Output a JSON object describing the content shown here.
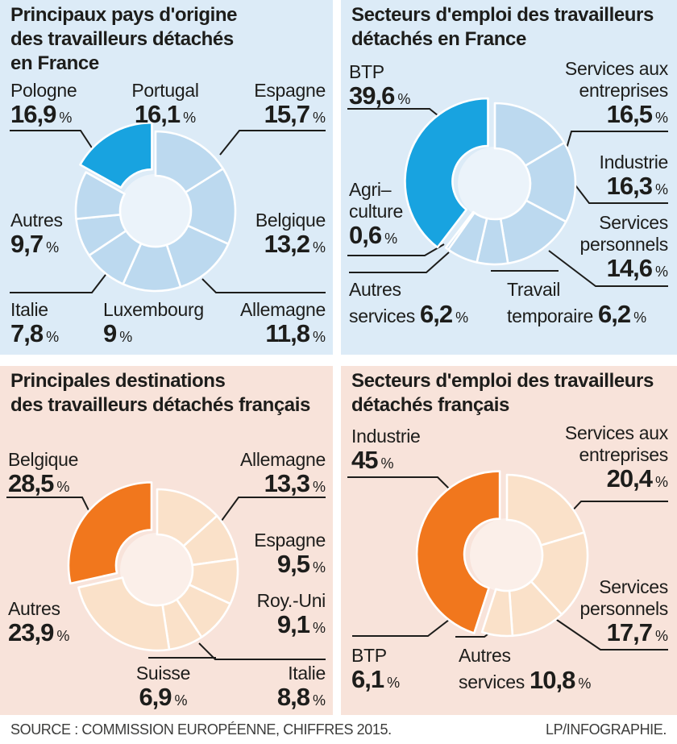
{
  "percent_sign": "%",
  "footer": {
    "source": "SOURCE : COMMISSION EUROPÉENNE, CHIFFRES 2015.",
    "credit": "LP/INFOGRAPHIE."
  },
  "colors": {
    "panel_blue_bg": "#dcebf7",
    "panel_peach_bg": "#f8e3da",
    "blue_slice": "#bcd9ef",
    "blue_highlight": "#18a3e0",
    "peach_slice": "#fae1c9",
    "orange_highlight": "#f1771d",
    "text": "#1d1d1b",
    "separator": "#ffffff"
  },
  "chart_data": [
    {
      "type": "donut",
      "panel": "top-left",
      "title": "Principaux pays d'origine des travailleurs détachés en France",
      "title_lines": [
        "Principaux pays d'origine",
        "des travailleurs détachés",
        "en France"
      ],
      "unit": "%",
      "slice_color": "#bcd9ef",
      "highlight_color": "#18a3e0",
      "segments": [
        {
          "label": "Portugal",
          "value": 16.1,
          "display": "16,1"
        },
        {
          "label": "Espagne",
          "value": 15.7,
          "display": "15,7"
        },
        {
          "label": "Belgique",
          "value": 13.2,
          "display": "13,2"
        },
        {
          "label": "Allemagne",
          "value": 11.8,
          "display": "11,8"
        },
        {
          "label": "Luxembourg",
          "value": 9,
          "display": "9"
        },
        {
          "label": "Italie",
          "value": 7.8,
          "display": "7,8"
        },
        {
          "label": "Autres",
          "value": 9.7,
          "display": "9,7"
        },
        {
          "label": "Pologne",
          "value": 16.9,
          "display": "16,9",
          "highlighted": true
        }
      ]
    },
    {
      "type": "donut",
      "panel": "top-right",
      "title": "Secteurs d'emploi des travailleurs détachés en France",
      "title_lines": [
        "Secteurs d'emploi des travailleurs",
        "détachés en France"
      ],
      "unit": "%",
      "slice_color": "#bcd9ef",
      "highlight_color": "#18a3e0",
      "segments": [
        {
          "label": "Services aux entreprises",
          "label_lines": [
            "Services aux",
            "entreprises"
          ],
          "value": 16.5,
          "display": "16,5"
        },
        {
          "label": "Industrie",
          "value": 16.3,
          "display": "16,3"
        },
        {
          "label": "Services personnels",
          "label_lines": [
            "Services",
            "personnels"
          ],
          "value": 14.6,
          "display": "14,6"
        },
        {
          "label": "Travail temporaire",
          "label_lines": [
            "Travail",
            "temporaire"
          ],
          "value": 6.2,
          "display": "6,2"
        },
        {
          "label": "Autres services",
          "label_lines": [
            "Autres",
            "services"
          ],
          "value": 6.2,
          "display": "6,2"
        },
        {
          "label": "Agriculture",
          "label_lines": [
            "Agri–",
            "culture"
          ],
          "value": 0.6,
          "display": "0,6"
        },
        {
          "label": "BTP",
          "value": 39.6,
          "display": "39,6",
          "highlighted": true
        }
      ]
    },
    {
      "type": "donut",
      "panel": "bottom-left",
      "title": "Principales destinations des travailleurs détachés français",
      "title_lines": [
        "Principales destinations",
        "des travailleurs détachés français"
      ],
      "unit": "%",
      "slice_color": "#fae1c9",
      "highlight_color": "#f1771d",
      "segments": [
        {
          "label": "Allemagne",
          "value": 13.3,
          "display": "13,3"
        },
        {
          "label": "Espagne",
          "value": 9.5,
          "display": "9,5"
        },
        {
          "label": "Roy.-Uni",
          "value": 9.1,
          "display": "9,1"
        },
        {
          "label": "Italie",
          "value": 8.8,
          "display": "8,8"
        },
        {
          "label": "Suisse",
          "value": 6.9,
          "display": "6,9"
        },
        {
          "label": "Autres",
          "value": 23.9,
          "display": "23,9"
        },
        {
          "label": "Belgique",
          "value": 28.5,
          "display": "28,5",
          "highlighted": true
        }
      ]
    },
    {
      "type": "donut",
      "panel": "bottom-right",
      "title": "Secteurs d'emploi des travailleurs détachés français",
      "title_lines": [
        "Secteurs d'emploi des travailleurs",
        "détachés français"
      ],
      "unit": "%",
      "slice_color": "#fae1c9",
      "highlight_color": "#f1771d",
      "segments": [
        {
          "label": "Services aux entreprises",
          "label_lines": [
            "Services aux",
            "entreprises"
          ],
          "value": 20.4,
          "display": "20,4"
        },
        {
          "label": "Services personnels",
          "label_lines": [
            "Services",
            "personnels"
          ],
          "value": 17.7,
          "display": "17,7"
        },
        {
          "label": "Autres services",
          "label_lines": [
            "Autres",
            "services"
          ],
          "value": 10.8,
          "display": "10,8"
        },
        {
          "label": "BTP",
          "value": 6.1,
          "display": "6,1"
        },
        {
          "label": "Industrie",
          "value": 45,
          "display": "45",
          "highlighted": true
        }
      ]
    }
  ]
}
